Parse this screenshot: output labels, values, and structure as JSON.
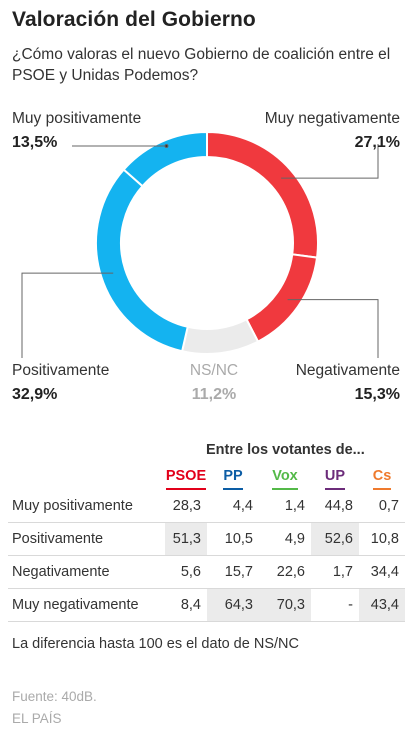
{
  "header": {
    "title": "Valoración del Gobierno",
    "subtitle": "¿Cómo valoras el nuevo Gobierno de coalición entre el PSOE y Unidas Podemos?"
  },
  "chart_data": [
    {
      "type": "pie",
      "variant": "donut",
      "categories": [
        "Muy negativamente",
        "Negativamente",
        "NS/NC",
        "Positivamente",
        "Muy positivamente"
      ],
      "values": [
        27.1,
        15.3,
        11.2,
        32.9,
        13.5
      ],
      "value_labels": [
        "27,1%",
        "15,3%",
        "11,2%",
        "32,9%",
        "13,5%"
      ],
      "colors": [
        "#f0393e",
        "#f0393e",
        "#ebebeb",
        "#14b3f0",
        "#14b3f0"
      ],
      "separator_color": "#ffffff"
    },
    {
      "type": "table",
      "caption": "Entre los votantes de...",
      "columns": [
        {
          "label": "PSOE",
          "color": "#e2001a"
        },
        {
          "label": "PP",
          "color": "#0c5da5"
        },
        {
          "label": "Vox",
          "color": "#54b948"
        },
        {
          "label": "UP",
          "color": "#6c2c7a"
        },
        {
          "label": "Cs",
          "color": "#ef7a2d"
        }
      ],
      "rows": [
        {
          "label": "Muy positivamente",
          "values": [
            "28,3",
            "4,4",
            "1,4",
            "44,8",
            "0,7"
          ],
          "highlight": [
            false,
            false,
            false,
            false,
            false
          ]
        },
        {
          "label": "Positivamente",
          "values": [
            "51,3",
            "10,5",
            "4,9",
            "52,6",
            "10,8"
          ],
          "highlight": [
            true,
            false,
            false,
            true,
            false
          ]
        },
        {
          "label": "Negativamente",
          "values": [
            "5,6",
            "15,7",
            "22,6",
            "1,7",
            "34,4"
          ],
          "highlight": [
            false,
            false,
            false,
            false,
            false
          ]
        },
        {
          "label": "Muy negativamente",
          "values": [
            "8,4",
            "64,3",
            "70,3",
            "-",
            "43,4"
          ],
          "highlight": [
            false,
            true,
            true,
            false,
            true
          ]
        }
      ]
    }
  ],
  "footer": {
    "note": "La diferencia hasta 100 es el dato de NS/NC",
    "source": "Fuente: 40dB.",
    "credit": "EL PAÍS"
  }
}
